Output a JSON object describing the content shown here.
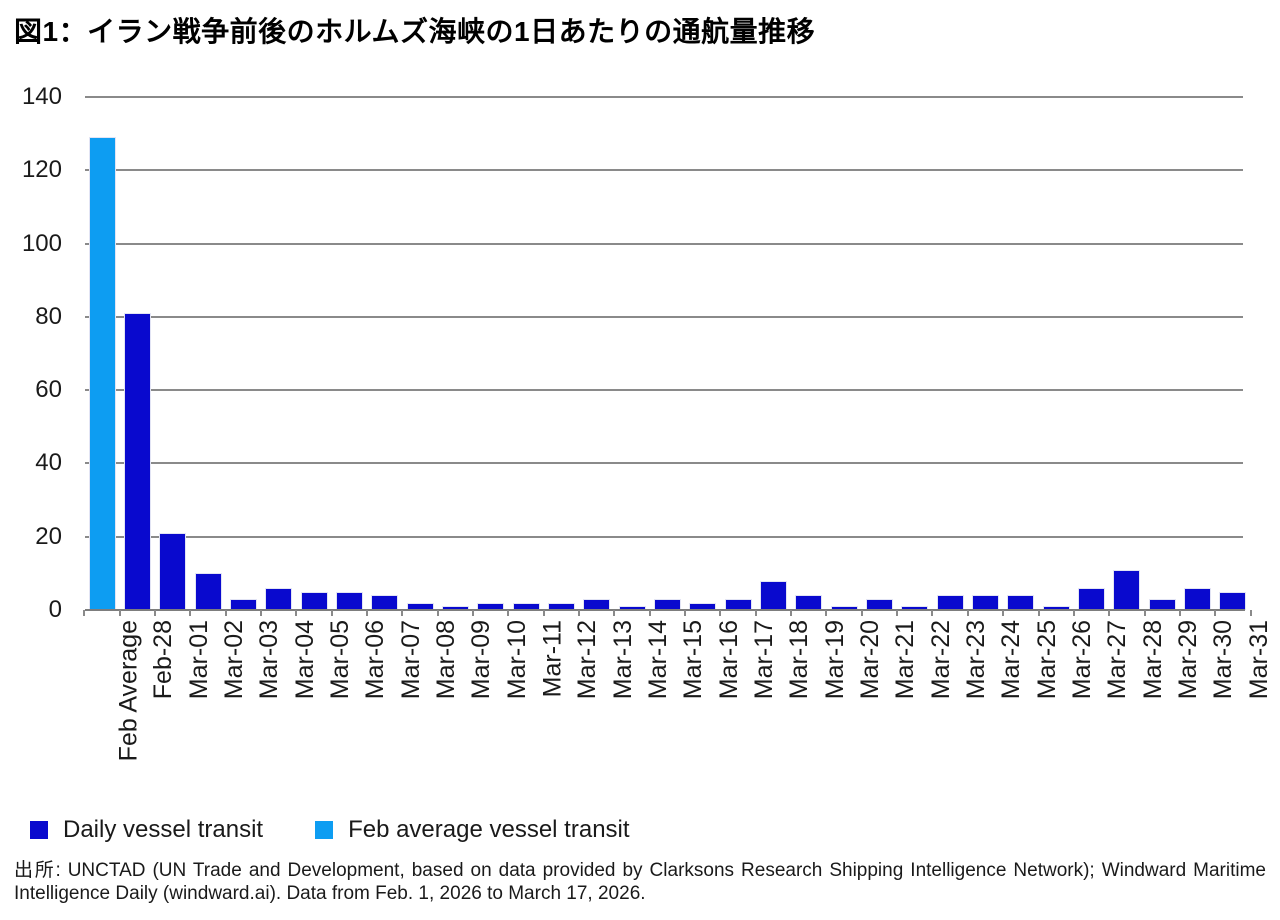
{
  "title": "図1：イラン戦争前後のホルムズ海峡の1日あたりの通航量推移",
  "chart_data": {
    "type": "bar",
    "title": "図1：イラン戦争前後のホルムズ海峡の1日あたりの通航量推移",
    "categories": [
      "Feb Average",
      "Feb-28",
      "Mar-01",
      "Mar-02",
      "Mar-03",
      "Mar-04",
      "Mar-05",
      "Mar-06",
      "Mar-07",
      "Mar-08",
      "Mar-09",
      "Mar-10",
      "Mar-11",
      "Mar-12",
      "Mar-13",
      "Mar-14",
      "Mar-15",
      "Mar-16",
      "Mar-17",
      "Mar-18",
      "Mar-19",
      "Mar-20",
      "Mar-21",
      "Mar-22",
      "Mar-23",
      "Mar-24",
      "Mar-25",
      "Mar-26",
      "Mar-27",
      "Mar-28",
      "Mar-29",
      "Mar-30",
      "Mar-31"
    ],
    "values": [
      129,
      81,
      21,
      10,
      3,
      6,
      5,
      5,
      4,
      2,
      1,
      2,
      2,
      2,
      3,
      1,
      3,
      2,
      3,
      8,
      4,
      1,
      3,
      1,
      4,
      4,
      4,
      1,
      6,
      11,
      3,
      6,
      5
    ],
    "highlight_category": "Feb Average",
    "colors": {
      "daily": "#0909ce",
      "feb_average": "#0d9df2",
      "gridline": "#8a8a8a"
    },
    "ylim": [
      0,
      140
    ],
    "yticks": [
      0,
      20,
      40,
      60,
      80,
      100,
      120,
      140
    ],
    "grid": true,
    "xlabel": "",
    "ylabel": "",
    "legend_position": "bottom-left",
    "legend": [
      {
        "label": "Daily vessel transit",
        "color": "#0909ce"
      },
      {
        "label": "Feb average vessel transit",
        "color": "#0d9df2"
      }
    ]
  },
  "source_note": "出所: UNCTAD (UN Trade and Development, based on data provided by Clarksons Research Shipping Intelligence Network); Windward Maritime Intelligence Daily (windward.ai). Data from Feb. 1, 2026 to March 17, 2026."
}
